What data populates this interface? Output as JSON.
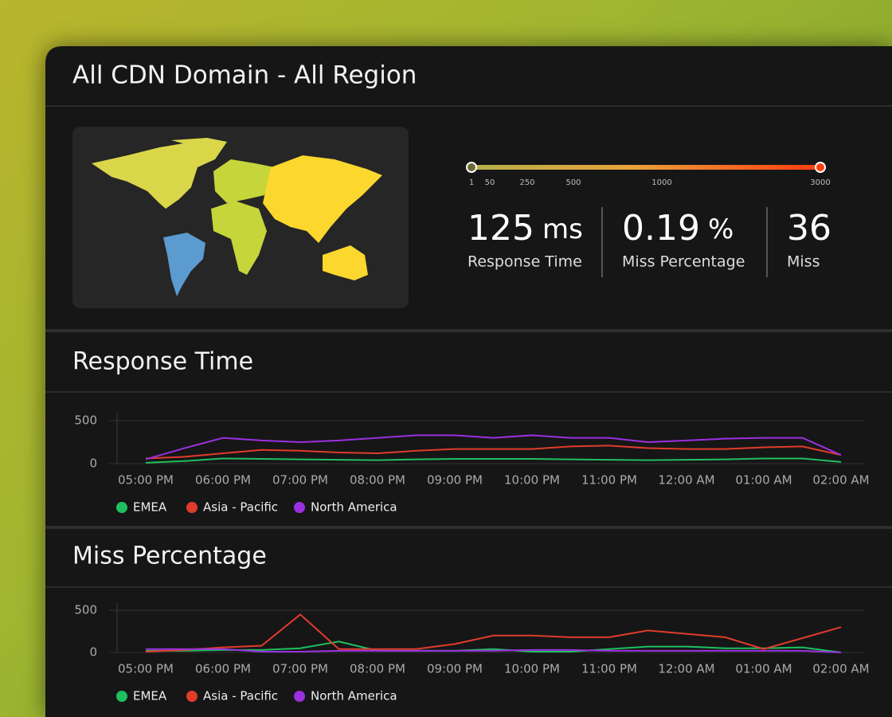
{
  "title": "All CDN Domain - All Region",
  "scale": {
    "ticks": [
      1,
      50,
      250,
      500,
      1000,
      3000
    ]
  },
  "stats": [
    {
      "value": 125,
      "unit": "ms",
      "label": "Response Time"
    },
    {
      "value": 0.19,
      "unit": "%",
      "label": "Miss Percentage"
    },
    {
      "value": 36,
      "label": "Miss"
    }
  ],
  "chart_data": [
    {
      "type": "line",
      "title": "Response Time",
      "categories": [
        "05:00 PM",
        null,
        "06:00 PM",
        null,
        "07:00 PM",
        null,
        "08:00 PM",
        null,
        "09:00 PM",
        null,
        "10:00 PM",
        null,
        "11:00 PM",
        null,
        "12:00 AM",
        null,
        "01:00 AM",
        null,
        "02:00 AM"
      ],
      "series": [
        {
          "name": "EMEA",
          "color": "#1fbf5f",
          "values": [
            10,
            30,
            60,
            55,
            50,
            45,
            40,
            50,
            55,
            55,
            55,
            50,
            45,
            40,
            45,
            50,
            60,
            60,
            20
          ]
        },
        {
          "name": "Asia - Pacific",
          "color": "#e03c2c",
          "values": [
            60,
            80,
            120,
            160,
            150,
            130,
            120,
            150,
            170,
            170,
            170,
            200,
            210,
            180,
            170,
            170,
            190,
            200,
            100
          ]
        },
        {
          "name": "North America",
          "color": "#9b30e0",
          "values": [
            50,
            180,
            300,
            270,
            250,
            270,
            300,
            330,
            330,
            300,
            330,
            300,
            300,
            250,
            270,
            290,
            300,
            300,
            100
          ]
        }
      ],
      "ylim": [
        0,
        500
      ],
      "yticks": [
        0,
        500
      ]
    },
    {
      "type": "line",
      "title": "Miss Percentage",
      "categories": [
        "05:00 PM",
        null,
        "06:00 PM",
        null,
        "07:00 PM",
        null,
        "08:00 PM",
        null,
        "09:00 PM",
        null,
        "10:00 PM",
        null,
        "11:00 PM",
        null,
        "12:00 AM",
        null,
        "01:00 AM",
        null,
        "02:00 AM"
      ],
      "series": [
        {
          "name": "EMEA",
          "color": "#1fbf5f",
          "values": [
            20,
            20,
            30,
            30,
            50,
            130,
            20,
            20,
            20,
            40,
            10,
            10,
            40,
            70,
            70,
            50,
            50,
            60,
            0
          ]
        },
        {
          "name": "Asia - Pacific",
          "color": "#e03c2c",
          "values": [
            10,
            30,
            60,
            80,
            450,
            40,
            40,
            40,
            100,
            200,
            200,
            180,
            180,
            260,
            220,
            180,
            40,
            170,
            300
          ]
        },
        {
          "name": "North America",
          "color": "#9b30e0",
          "values": [
            40,
            40,
            40,
            10,
            10,
            20,
            20,
            20,
            20,
            20,
            30,
            30,
            20,
            20,
            20,
            20,
            20,
            20,
            0
          ]
        }
      ],
      "ylim": [
        0,
        500
      ],
      "yticks": [
        0,
        500
      ]
    }
  ]
}
